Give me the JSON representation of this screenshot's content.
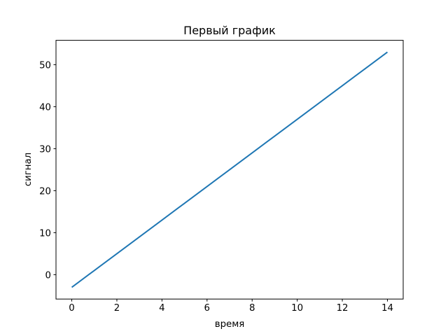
{
  "chart_data": {
    "type": "line",
    "title": "Первый график",
    "xlabel": "время",
    "ylabel": "сигнал",
    "xlim": [
      -0.7,
      14.7
    ],
    "ylim": [
      -5.8,
      55.8
    ],
    "xticks": [
      0,
      2,
      4,
      6,
      8,
      10,
      12,
      14
    ],
    "yticks": [
      0,
      10,
      20,
      30,
      40,
      50
    ],
    "grid": false,
    "series": [
      {
        "color": "#1f77b4",
        "x": [
          0,
          1,
          2,
          3,
          4,
          5,
          6,
          7,
          8,
          9,
          10,
          11,
          12,
          13,
          14
        ],
        "y": [
          -3,
          1,
          5,
          9,
          13,
          17,
          21,
          25,
          29,
          33,
          37,
          41,
          45,
          49,
          53
        ]
      }
    ]
  }
}
